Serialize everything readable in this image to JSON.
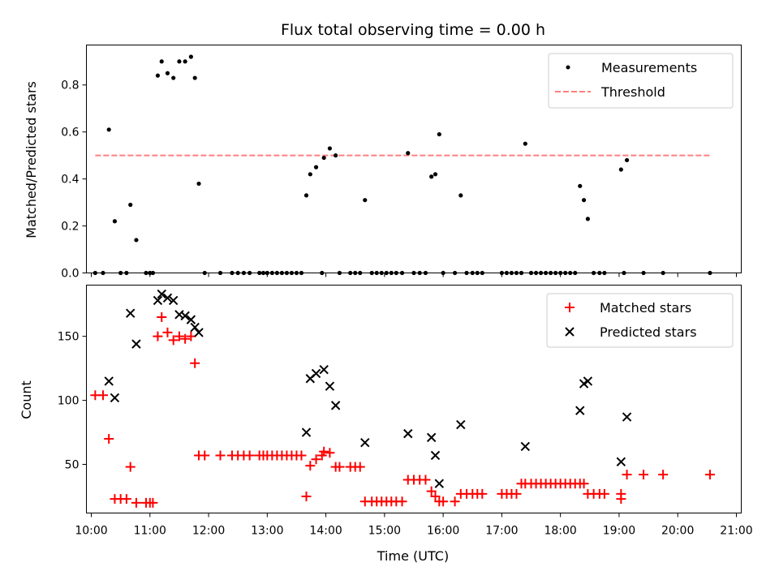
{
  "chart_data": [
    {
      "type": "scatter",
      "title": "Flux total observing time = 0.00 h",
      "xlabel": "",
      "ylabel": "Matched/Predicted stars",
      "xlim": [
        "09:55",
        "21:05"
      ],
      "ylim": [
        0,
        0.97
      ],
      "yticks": [
        "0.0",
        "0.2",
        "0.4",
        "0.6",
        "0.8"
      ],
      "grid": false,
      "legend": "upper right",
      "series": [
        {
          "name": "Measurements",
          "kind": "points",
          "color": "#000000",
          "points": [
            [
              "10:04",
              0
            ],
            [
              "10:12",
              0
            ],
            [
              "10:18",
              0.61
            ],
            [
              "10:24",
              0.22
            ],
            [
              "10:30",
              0
            ],
            [
              "10:36",
              0
            ],
            [
              "10:40",
              0.29
            ],
            [
              "10:46",
              0.14
            ],
            [
              "10:56",
              0
            ],
            [
              "11:00",
              0
            ],
            [
              "11:03",
              0
            ],
            [
              "11:08",
              0.84
            ],
            [
              "11:12",
              0.9
            ],
            [
              "11:18",
              0.85
            ],
            [
              "11:24",
              0.83
            ],
            [
              "11:30",
              0.9
            ],
            [
              "11:36",
              0.9
            ],
            [
              "11:42",
              0.92
            ],
            [
              "11:46",
              0.83
            ],
            [
              "11:50",
              0.38
            ],
            [
              "11:56",
              0
            ],
            [
              "12:12",
              0
            ],
            [
              "12:24",
              0
            ],
            [
              "12:30",
              0
            ],
            [
              "12:36",
              0
            ],
            [
              "12:42",
              0
            ],
            [
              "12:52",
              0
            ],
            [
              "12:56",
              0
            ],
            [
              "13:00",
              0
            ],
            [
              "13:05",
              0
            ],
            [
              "13:10",
              0
            ],
            [
              "13:15",
              0
            ],
            [
              "13:20",
              0
            ],
            [
              "13:25",
              0
            ],
            [
              "13:30",
              0
            ],
            [
              "13:35",
              0
            ],
            [
              "13:40",
              0.33
            ],
            [
              "13:44",
              0.42
            ],
            [
              "13:50",
              0.45
            ],
            [
              "13:56",
              0
            ],
            [
              "13:58",
              0.49
            ],
            [
              "14:04",
              0.53
            ],
            [
              "14:10",
              0.5
            ],
            [
              "14:14",
              0
            ],
            [
              "14:25",
              0
            ],
            [
              "14:30",
              0
            ],
            [
              "14:35",
              0
            ],
            [
              "14:40",
              0.31
            ],
            [
              "14:47",
              0
            ],
            [
              "14:52",
              0
            ],
            [
              "14:57",
              0
            ],
            [
              "15:02",
              0
            ],
            [
              "15:07",
              0
            ],
            [
              "15:12",
              0
            ],
            [
              "15:18",
              0
            ],
            [
              "15:24",
              0.51
            ],
            [
              "15:30",
              0
            ],
            [
              "15:36",
              0
            ],
            [
              "15:42",
              0
            ],
            [
              "15:48",
              0.41
            ],
            [
              "15:52",
              0.42
            ],
            [
              "15:56",
              0.59
            ],
            [
              "16:00",
              0
            ],
            [
              "16:12",
              0
            ],
            [
              "16:18",
              0.33
            ],
            [
              "16:24",
              0
            ],
            [
              "16:30",
              0
            ],
            [
              "16:35",
              0
            ],
            [
              "16:40",
              0
            ],
            [
              "17:00",
              0
            ],
            [
              "17:05",
              0
            ],
            [
              "17:10",
              0
            ],
            [
              "17:15",
              0
            ],
            [
              "17:20",
              0
            ],
            [
              "17:24",
              0.55
            ],
            [
              "17:30",
              0
            ],
            [
              "17:35",
              0
            ],
            [
              "17:40",
              0
            ],
            [
              "17:45",
              0
            ],
            [
              "17:50",
              0
            ],
            [
              "17:55",
              0
            ],
            [
              "18:00",
              0
            ],
            [
              "18:05",
              0
            ],
            [
              "18:10",
              0
            ],
            [
              "18:15",
              0
            ],
            [
              "18:20",
              0.37
            ],
            [
              "18:24",
              0.31
            ],
            [
              "18:28",
              0.23
            ],
            [
              "18:34",
              0
            ],
            [
              "18:40",
              0
            ],
            [
              "18:45",
              0
            ],
            [
              "19:02",
              0.44
            ],
            [
              "19:08",
              0.48
            ],
            [
              "19:05",
              0
            ],
            [
              "19:25",
              0
            ],
            [
              "19:45",
              0
            ],
            [
              "20:33",
              0
            ]
          ]
        },
        {
          "name": "Threshold",
          "kind": "dashed-line",
          "color": "#ff7f7f",
          "x": [
            "10:04",
            "20:33"
          ],
          "y": [
            0.5,
            0.5
          ]
        }
      ]
    },
    {
      "type": "scatter",
      "xlabel": "Time (UTC)",
      "ylabel": "Count",
      "xlim": [
        "09:55",
        "21:05"
      ],
      "ylim": [
        12,
        190
      ],
      "yticks": [
        "50",
        "100",
        "150"
      ],
      "xticks": [
        "10:00",
        "11:00",
        "12:00",
        "13:00",
        "14:00",
        "15:00",
        "16:00",
        "17:00",
        "18:00",
        "19:00",
        "20:00",
        "21:00"
      ],
      "grid": false,
      "legend": "upper right",
      "series": [
        {
          "name": "Matched stars",
          "marker": "plus",
          "color": "#ff0000",
          "points": [
            [
              "10:04",
              104
            ],
            [
              "10:12",
              104
            ],
            [
              "10:18",
              70
            ],
            [
              "10:24",
              23
            ],
            [
              "10:30",
              23
            ],
            [
              "10:36",
              23
            ],
            [
              "10:40",
              48
            ],
            [
              "10:46",
              20
            ],
            [
              "10:56",
              20
            ],
            [
              "11:00",
              20
            ],
            [
              "11:03",
              20
            ],
            [
              "11:08",
              150
            ],
            [
              "11:12",
              165
            ],
            [
              "11:18",
              153
            ],
            [
              "11:24",
              147
            ],
            [
              "11:30",
              150
            ],
            [
              "11:36",
              148
            ],
            [
              "11:42",
              150
            ],
            [
              "11:46",
              129
            ],
            [
              "11:50",
              57
            ],
            [
              "11:56",
              57
            ],
            [
              "12:12",
              57
            ],
            [
              "12:24",
              57
            ],
            [
              "12:30",
              57
            ],
            [
              "12:36",
              57
            ],
            [
              "12:42",
              57
            ],
            [
              "12:52",
              57
            ],
            [
              "12:56",
              57
            ],
            [
              "13:00",
              57
            ],
            [
              "13:05",
              57
            ],
            [
              "13:10",
              57
            ],
            [
              "13:15",
              57
            ],
            [
              "13:20",
              57
            ],
            [
              "13:25",
              57
            ],
            [
              "13:30",
              57
            ],
            [
              "13:35",
              57
            ],
            [
              "13:40",
              25
            ],
            [
              "13:44",
              49
            ],
            [
              "13:50",
              54
            ],
            [
              "13:56",
              57
            ],
            [
              "13:58",
              60
            ],
            [
              "14:04",
              59
            ],
            [
              "14:10",
              48
            ],
            [
              "14:14",
              48
            ],
            [
              "14:25",
              48
            ],
            [
              "14:30",
              48
            ],
            [
              "14:35",
              48
            ],
            [
              "14:40",
              21
            ],
            [
              "14:47",
              21
            ],
            [
              "14:52",
              21
            ],
            [
              "14:57",
              21
            ],
            [
              "15:02",
              21
            ],
            [
              "15:07",
              21
            ],
            [
              "15:12",
              21
            ],
            [
              "15:18",
              21
            ],
            [
              "15:24",
              38
            ],
            [
              "15:30",
              38
            ],
            [
              "15:36",
              38
            ],
            [
              "15:42",
              38
            ],
            [
              "15:48",
              29
            ],
            [
              "15:52",
              25
            ],
            [
              "15:56",
              21
            ],
            [
              "16:00",
              21
            ],
            [
              "16:12",
              21
            ],
            [
              "16:18",
              27
            ],
            [
              "16:24",
              27
            ],
            [
              "16:30",
              27
            ],
            [
              "16:35",
              27
            ],
            [
              "16:40",
              27
            ],
            [
              "17:00",
              27
            ],
            [
              "17:05",
              27
            ],
            [
              "17:10",
              27
            ],
            [
              "17:15",
              27
            ],
            [
              "17:20",
              35
            ],
            [
              "17:24",
              35
            ],
            [
              "17:30",
              35
            ],
            [
              "17:35",
              35
            ],
            [
              "17:40",
              35
            ],
            [
              "17:45",
              35
            ],
            [
              "17:50",
              35
            ],
            [
              "17:55",
              35
            ],
            [
              "18:00",
              35
            ],
            [
              "18:05",
              35
            ],
            [
              "18:10",
              35
            ],
            [
              "18:15",
              35
            ],
            [
              "18:20",
              35
            ],
            [
              "18:24",
              35
            ],
            [
              "18:28",
              27
            ],
            [
              "18:34",
              27
            ],
            [
              "18:40",
              27
            ],
            [
              "18:45",
              27
            ],
            [
              "19:02",
              27
            ],
            [
              "19:02",
              23
            ],
            [
              "19:08",
              42
            ],
            [
              "19:25",
              42
            ],
            [
              "19:45",
              42
            ],
            [
              "20:33",
              42
            ]
          ]
        },
        {
          "name": "Predicted stars",
          "marker": "x",
          "color": "#000000",
          "points": [
            [
              "10:18",
              115
            ],
            [
              "10:24",
              102
            ],
            [
              "10:40",
              168
            ],
            [
              "10:46",
              144
            ],
            [
              "11:08",
              178
            ],
            [
              "11:12",
              183
            ],
            [
              "11:18",
              180
            ],
            [
              "11:24",
              178
            ],
            [
              "11:30",
              167
            ],
            [
              "11:36",
              166
            ],
            [
              "11:42",
              163
            ],
            [
              "11:46",
              157
            ],
            [
              "11:50",
              153
            ],
            [
              "13:40",
              75
            ],
            [
              "13:44",
              117
            ],
            [
              "13:50",
              121
            ],
            [
              "13:58",
              124
            ],
            [
              "14:04",
              111
            ],
            [
              "14:10",
              96
            ],
            [
              "14:40",
              67
            ],
            [
              "15:24",
              74
            ],
            [
              "15:48",
              71
            ],
            [
              "15:52",
              57
            ],
            [
              "15:56",
              35
            ],
            [
              "16:18",
              81
            ],
            [
              "17:24",
              64
            ],
            [
              "18:20",
              92
            ],
            [
              "18:24",
              113
            ],
            [
              "18:28",
              115
            ],
            [
              "19:02",
              52
            ],
            [
              "19:08",
              87
            ]
          ]
        }
      ]
    }
  ]
}
